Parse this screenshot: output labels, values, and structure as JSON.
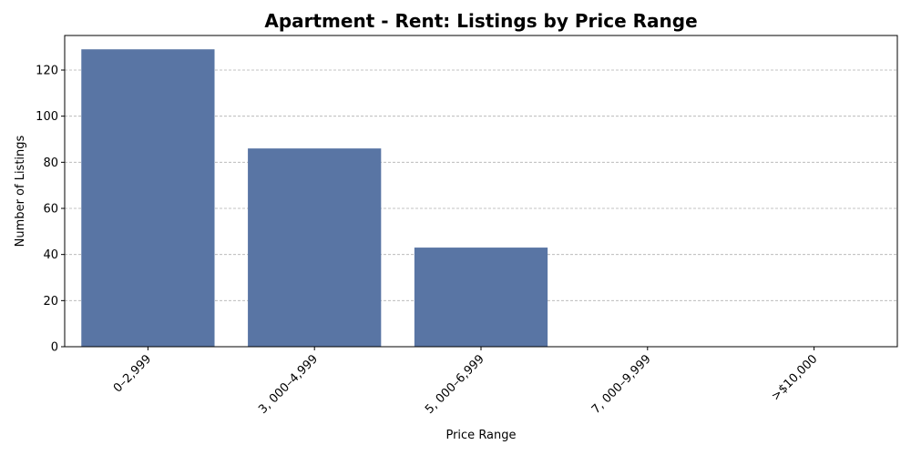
{
  "chart_data": {
    "type": "bar",
    "title": "Apartment - Rent: Listings by Price Range",
    "xlabel": "Price Range",
    "ylabel": "Number of Listings",
    "categories": [
      "0–2,999",
      "3, 000–4,999",
      "5, 000–6,999",
      "7, 000–9,999",
      ">$10,000"
    ],
    "values": [
      129,
      86,
      43,
      0,
      0
    ],
    "ylim": [
      0,
      135
    ],
    "yticks": [
      0,
      20,
      40,
      60,
      80,
      100,
      120
    ],
    "grid": true,
    "bar_color": "#5975a4"
  }
}
